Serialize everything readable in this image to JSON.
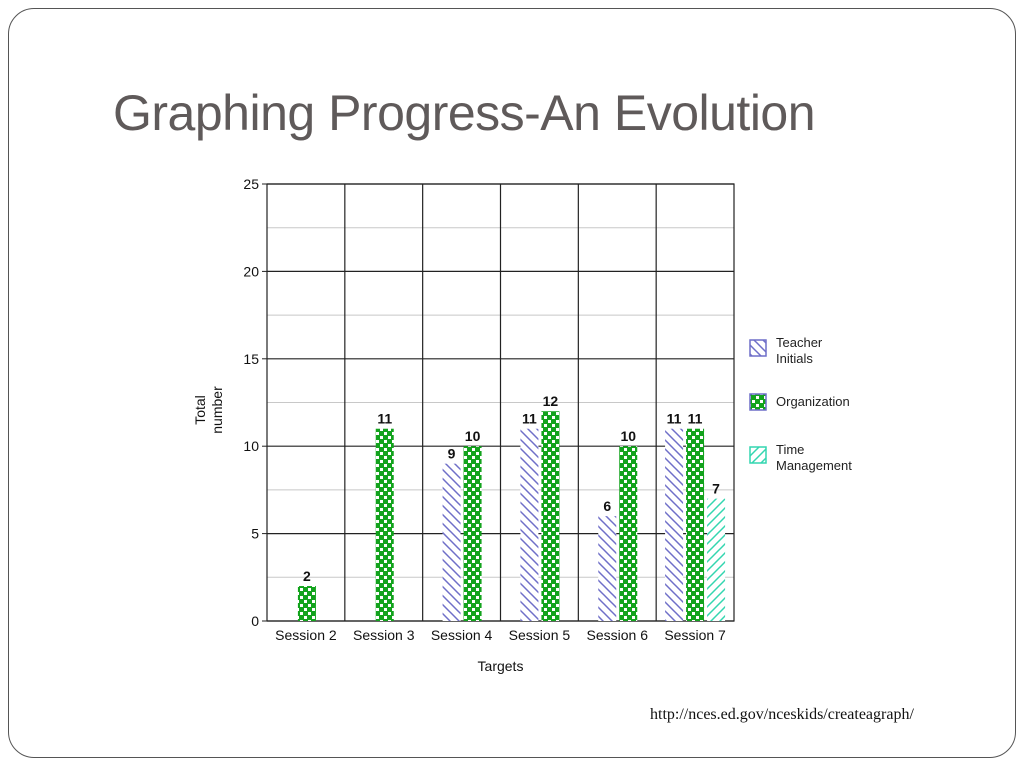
{
  "slide": {
    "title": "Graphing Progress-An Evolution",
    "source": "http://nces.ed.gov/nceskids/createagraph/"
  },
  "chart_data": {
    "type": "bar",
    "categories": [
      "Session 2",
      "Session 3",
      "Session 4",
      "Session 5",
      "Session 6",
      "Session 7"
    ],
    "series": [
      {
        "name": "Teacher Initials",
        "values": [
          null,
          null,
          9,
          11,
          6,
          11
        ],
        "color": "#6f6fc8",
        "pattern": "diagonal-hatch"
      },
      {
        "name": "Organization",
        "values": [
          2,
          11,
          10,
          12,
          10,
          11
        ],
        "color": "#13a31d",
        "pattern": "checkerboard"
      },
      {
        "name": "Time Management",
        "values": [
          null,
          null,
          null,
          null,
          null,
          7
        ],
        "color": "#33d6b0",
        "pattern": "diagonal-hatch"
      }
    ],
    "xlabel": "Targets",
    "ylabel_lines": [
      "Total",
      "number"
    ],
    "ylim": [
      0,
      25
    ],
    "yticks": [
      0,
      5,
      10,
      15,
      20,
      25
    ],
    "grid": true,
    "legend_position": "right"
  }
}
